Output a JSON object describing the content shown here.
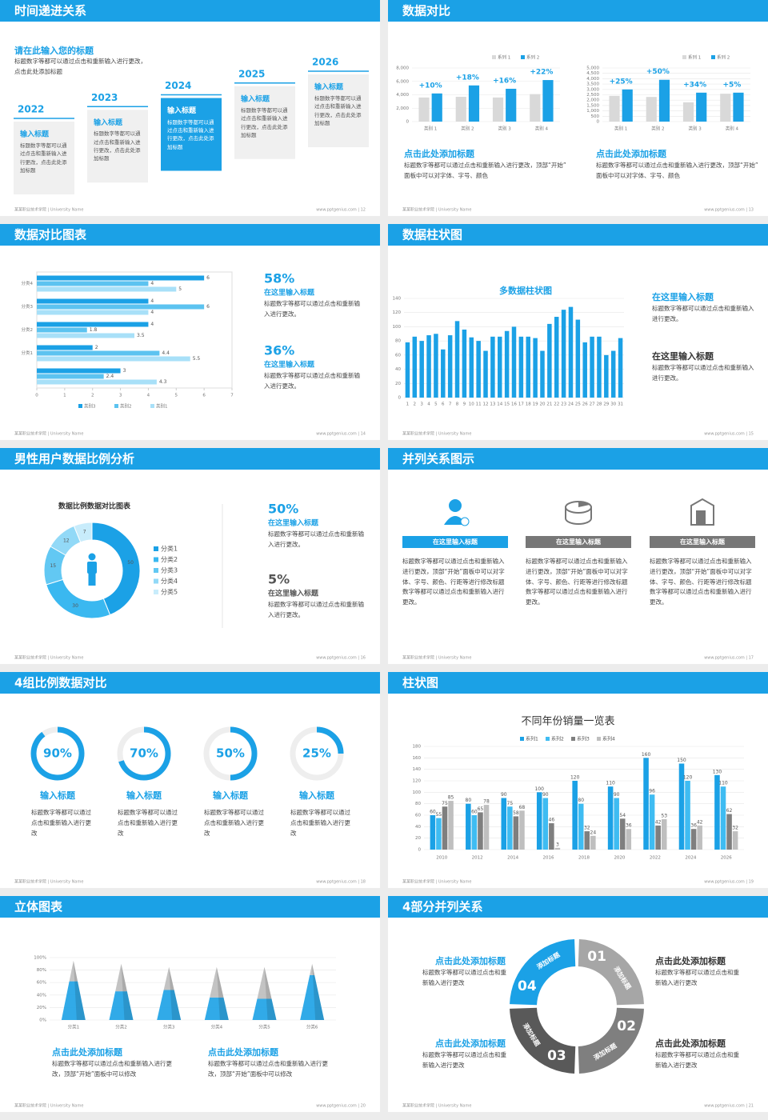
{
  "footer_left": "某某职业技术学院 | University Name",
  "slides": [
    {
      "type": "timeline",
      "title": "时间递进关系",
      "page": "www.pptgenius.com | 12",
      "heading": "请在此输入您的标题",
      "intro": "标题数字等都可以通过点击和重新输入进行更改，点击此处添加标题",
      "steps": [
        {
          "year": "2022",
          "title": "输入标题",
          "text": "标题数字等都可以通过点击和重新输入进行更改，点击此处添加标题",
          "fill": "#f0f0f0"
        },
        {
          "year": "2023",
          "title": "输入标题",
          "text": "标题数字等都可以通过点击和重新输入进行更改，点击此处添加标题",
          "fill": "#f0f0f0"
        },
        {
          "year": "2024",
          "title": "输入标题",
          "text": "标题数字等都可以通过点击和重新输入进行更改，点击此处添加标题",
          "fill": "#1ba1e6"
        },
        {
          "year": "2025",
          "title": "输入标题",
          "text": "标题数字等都可以通过点击和重新输入进行更改，点击此处添加标题",
          "fill": "#f0f0f0"
        },
        {
          "year": "2026",
          "title": "输入标题",
          "text": "标题数字等都可以通过点击和重新输入进行更改，点击此处添加标题",
          "fill": "#f0f0f0"
        }
      ]
    },
    {
      "type": "compare",
      "title": "数据对比",
      "page": "www.pptgenius.com | 13",
      "charts": [
        {
          "categories": [
            "类别 1",
            "类别 2",
            "类别 3",
            "类别 4"
          ],
          "series": [
            {
              "name": "系列 1",
              "color": "#d9d9d9",
              "values": [
                3600,
                3700,
                3600,
                4100
              ]
            },
            {
              "name": "系列 2",
              "color": "#1ba1e6",
              "values": [
                4200,
                5400,
                4900,
                6200
              ]
            }
          ],
          "ylim": [
            0,
            8000
          ],
          "yticks": [
            0,
            {
              "value": 2000,
              "label": "2,000"
            },
            {
              "value": 4000,
              "label": "4,000"
            },
            {
              "value": 6000,
              "label": "6,000"
            },
            {
              "value": 8000,
              "label": "8,000"
            }
          ],
          "annotations": [
            "+10%",
            "+18%",
            "+16%",
            "+22%"
          ]
        },
        {
          "categories": [
            "类别 1",
            "类别 2",
            "类别 3",
            "类别 4"
          ],
          "series": [
            {
              "name": "系列 1",
              "color": "#d9d9d9",
              "values": [
                2400,
                2300,
                1800,
                2600
              ]
            },
            {
              "name": "系列 2",
              "color": "#1ba1e6",
              "values": [
                3000,
                3900,
                2700,
                2700
              ]
            }
          ],
          "ylim": [
            0,
            5000
          ],
          "yticks": [
            0,
            500,
            {
              "value": 1000,
              "label": "1,000"
            },
            {
              "value": 1500,
              "label": "1,500"
            },
            {
              "value": 2000,
              "label": "2,000"
            },
            {
              "value": 2500,
              "label": "2,500"
            },
            {
              "value": 3000,
              "label": "3,000"
            },
            {
              "value": 3500,
              "label": "3,500"
            },
            {
              "value": 4000,
              "label": "4,000"
            },
            {
              "value": 4500,
              "label": "4,500"
            },
            {
              "value": 5000,
              "label": "5,000"
            }
          ],
          "annotations": [
            "+25%",
            "+50%",
            "+34%",
            "+5%"
          ]
        }
      ],
      "blocks": [
        {
          "heading": "点击此处添加标题",
          "text": "标题数字等都可以通过点击和重新输入进行更改，顶部“开始”面板中可以对字体、字号、颜色"
        },
        {
          "heading": "点击此处添加标题",
          "text": "标题数字等都可以通过点击和重新输入进行更改，顶部“开始”面板中可以对字体、字号、颜色"
        }
      ]
    },
    {
      "type": "hbar",
      "title": "数据对比图表",
      "page": "www.pptgenius.com | 14",
      "chart": {
        "categories": [
          null,
          "分类1",
          "分类2",
          "分类3",
          "分类4"
        ],
        "series": [
          {
            "name": "类别3",
            "color": "#1ba1e6",
            "values": [
              3,
              2,
              4,
              4,
              6
            ]
          },
          {
            "name": "类别2",
            "color": "#5cc3f0",
            "values": [
              2.4,
              4.4,
              1.8,
              6,
              4
            ]
          },
          {
            "name": "类别1",
            "color": "#a8e0f8",
            "values": [
              4.3,
              5.5,
              3.5,
              4,
              5
            ]
          }
        ],
        "xlim": [
          0,
          7
        ],
        "xticks": [
          0,
          1,
          2,
          3,
          4,
          5,
          6,
          7
        ]
      },
      "stats": [
        {
          "value": "58%",
          "title": "在这里输入标题",
          "text": "标题数字等都可以通过点击和重新输入进行更改。"
        },
        {
          "value": "36%",
          "title": "在这里输入标题",
          "text": "标题数字等都可以通过点击和重新输入进行更改。"
        }
      ]
    },
    {
      "type": "bars31",
      "title": "数据柱状图",
      "page": "www.pptgenius.com | 15",
      "chart": {
        "title": "多数据柱状图",
        "categories": [
          "1",
          "2",
          "3",
          "4",
          "5",
          "6",
          "7",
          "8",
          "9",
          "10",
          "11",
          "12",
          "13",
          "14",
          "15",
          "16",
          "17",
          "18",
          "19",
          "20",
          "21",
          "22",
          "23",
          "24",
          "25",
          "26",
          "27",
          "28",
          "29",
          "30",
          "31"
        ],
        "series": [
          {
            "color": "#1ba1e6",
            "values": [
              78,
              86,
              80,
              88,
              90,
              68,
              88,
              108,
              96,
              85,
              80,
              66,
              86,
              86,
              94,
              100,
              86,
              86,
              84,
              66,
              104,
              114,
              124,
              128,
              110,
              78,
              86,
              86,
              60,
              66,
              84
            ]
          }
        ],
        "ylim": [
          0,
          140
        ],
        "yticks": [
          0,
          20,
          40,
          60,
          80,
          100,
          120,
          140
        ]
      },
      "items": [
        {
          "title": "在这里输入标题",
          "text": "标题数字等都可以通过点击和重新输入进行更改。"
        },
        {
          "title": "在这里输入标题",
          "text": "标题数字等都可以通过点击和重新输入进行更改。"
        }
      ]
    },
    {
      "type": "donut",
      "title": "男性用户数据比例分析",
      "page": "www.pptgenius.com | 16",
      "chart": {
        "title": "数据比例数据对比图表",
        "categories": [
          "分类1",
          "分类2",
          "分类3",
          "分类4",
          "分类5"
        ],
        "values": [
          50,
          30,
          15,
          12,
          7
        ],
        "colors": [
          "#1ba1e6",
          "#3ab8f0",
          "#62c8f3",
          "#92d9f7",
          "#c8ecfb"
        ]
      },
      "stats": [
        {
          "value": "50%",
          "title": "在这里输入标题",
          "text": "标题数字等都可以通过点击和重新输入进行更改。"
        },
        {
          "value": "5%",
          "title": "在这里输入标题",
          "text": "标题数字等都可以通过点击和重新输入进行更改。"
        }
      ]
    },
    {
      "type": "parallel",
      "title": "并列关系图示",
      "page": "www.pptgenius.com | 17",
      "columns": [
        {
          "label": "在这里输入标题",
          "text": "标题数字等都可以通过点击和重新输入进行更改，顶部“开始”面板中可以对字体、字号、颜色、行距等进行修改标题数字等都可以通过点击和重新输入进行更改。"
        },
        {
          "label": "在这里输入标题",
          "text": "标题数字等都可以通过点击和重新输入进行更改，顶部“开始”面板中可以对字体、字号、颜色、行距等进行修改标题数字等都可以通过点击和重新输入进行更改。"
        },
        {
          "label": "在这里输入标题",
          "text": "标题数字等都可以通过点击和重新输入进行更改，顶部“开始”面板中可以对字体、字号、颜色、行距等进行修改标题数字等都可以通过点击和重新输入进行更改。"
        }
      ]
    },
    {
      "type": "rings",
      "title": "4组比例数据对比",
      "page": "www.pptgenius.com | 18",
      "chart": {
        "values": [
          90,
          70,
          50,
          25
        ],
        "value_labels": [
          "90%",
          "70%",
          "50%",
          "25%"
        ],
        "color": "#1ba1e6"
      },
      "items": [
        {
          "title": "输入标题",
          "text": "标题数字等都可以通过点击和重新输入进行更改"
        },
        {
          "title": "输入标题",
          "text": "标题数字等都可以通过点击和重新输入进行更改"
        },
        {
          "title": "输入标题",
          "text": "标题数字等都可以通过点击和重新输入进行更改"
        },
        {
          "title": "输入标题",
          "text": "标题数字等都可以通过点击和重新输入进行更改"
        }
      ]
    },
    {
      "type": "grouped",
      "title": "柱状图",
      "page": "www.pptgenius.com | 19",
      "chart": {
        "title": "不同年份销量一览表",
        "categories": [
          "2010",
          "2012",
          "2014",
          "2016",
          "2018",
          "2020",
          "2022",
          "2024",
          "2026"
        ],
        "series": [
          {
            "name": "系列1",
            "color": "#1ba1e6",
            "values": [
              60,
              80,
              90,
              100,
              120,
              110,
              160,
              150,
              130
            ]
          },
          {
            "name": "系列2",
            "color": "#3fbcf2",
            "values": [
              55,
              60,
              75,
              90,
              80,
              90,
              96,
              120,
              110
            ]
          },
          {
            "name": "系列3",
            "color": "#7f7f7f",
            "values": [
              75,
              65,
              58,
              46,
              32,
              54,
              42,
              36,
              62
            ]
          },
          {
            "name": "系列4",
            "color": "#bfbfbf",
            "values": [
              85,
              78,
              68,
              3,
              24,
              36,
              53,
              42,
              32
            ]
          }
        ],
        "ylim": [
          0,
          180
        ],
        "yticks": [
          0,
          20,
          40,
          60,
          80,
          100,
          120,
          140,
          160,
          180
        ]
      }
    },
    {
      "type": "cones",
      "title": "立体图表",
      "page": "www.pptgenius.com | 20",
      "chart": {
        "categories": [
          "分类1",
          "分类2",
          "分类3",
          "分类4",
          "分类5",
          "分类6"
        ],
        "series": [
          {
            "color": "#1ba1e6",
            "values": [
              62,
              46,
              48,
              36,
              34,
              72
            ]
          },
          {
            "color": "#bdbdbd",
            "values": [
              33,
              44,
              37,
              49,
              51,
              18
            ]
          }
        ],
        "ylim": [
          0,
          100
        ],
        "yticks": [
          {
            "value": 0,
            "label": "0%"
          },
          {
            "value": 20,
            "label": "20%"
          },
          {
            "value": 40,
            "label": "40%"
          },
          {
            "value": 60,
            "label": "60%"
          },
          {
            "value": 80,
            "label": "80%"
          },
          {
            "value": 100,
            "label": "100%"
          }
        ]
      },
      "blocks": [
        {
          "heading": "点击此处添加标题",
          "text": "标题数字等都可以通过点击和重新输入进行更改，顶部“开始”面板中可以修改"
        },
        {
          "heading": "点击此处添加标题",
          "text": "标题数字等都可以通过点击和重新输入进行更改，顶部“开始”面板中可以修改"
        }
      ]
    },
    {
      "type": "ring4",
      "title": "4部分并列关系",
      "page": "www.pptgenius.com | 21",
      "segments": [
        {
          "num": "01",
          "label": "添加标题",
          "color": "#a6a6a6"
        },
        {
          "num": "02",
          "label": "添加标题",
          "color": "#7f7f7f"
        },
        {
          "num": "03",
          "label": "添加标题",
          "color": "#595959"
        },
        {
          "num": "04",
          "label": "添加标题",
          "color": "#1ba1e6"
        }
      ],
      "blocks": [
        {
          "heading": "点击此处添加标题",
          "text": "标题数字等都可以通过点击和重新输入进行更改"
        },
        {
          "heading": "点击此处添加标题",
          "text": "标题数字等都可以通过点击和重新输入进行更改"
        },
        {
          "heading": "点击此处添加标题",
          "text": "标题数字等都可以通过点击和重新输入进行更改"
        },
        {
          "heading": "点击此处添加标题",
          "text": "标题数字等都可以通过点击和重新输入进行更改"
        }
      ]
    }
  ]
}
